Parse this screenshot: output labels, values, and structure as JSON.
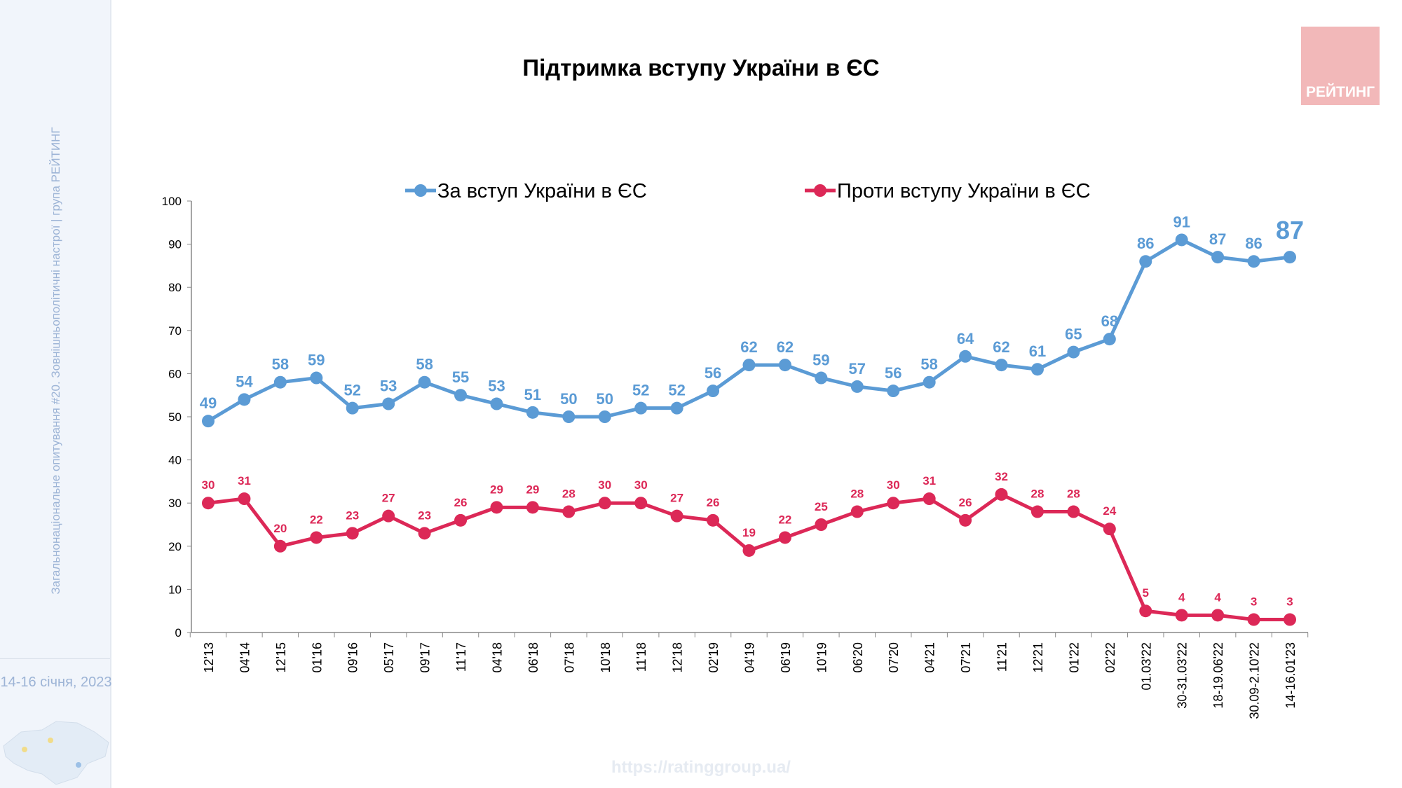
{
  "sidebar": {
    "survey_caption": "Загальнонаціональне опитування #20. Зовнішньополітичні настрої | група РЕЙТИНГ",
    "date": "14-16 січня, 2023"
  },
  "logo": {
    "text": "РЕЙТИНГ"
  },
  "footer": {
    "url": "https://ratinggroup.ua/"
  },
  "chart_data": {
    "type": "line",
    "title": "Підтримка вступу України в ЄС",
    "ylim": [
      0,
      100
    ],
    "yticks": [
      0,
      10,
      20,
      30,
      40,
      50,
      60,
      70,
      80,
      90,
      100
    ],
    "grid": false,
    "legend": "top",
    "categories": [
      "12'13",
      "04'14",
      "12'15",
      "01'16",
      "09'16",
      "05'17",
      "09'17",
      "11'17",
      "04'18",
      "06'18",
      "07'18",
      "10'18",
      "11'18",
      "12'18",
      "02'19",
      "04'19",
      "06'19",
      "10'19",
      "06'20",
      "07'20",
      "04'21",
      "07'21",
      "11'21",
      "12'21",
      "01'22",
      "02'22",
      "01.03'22",
      "30-31.03'22",
      "18-19.06'22",
      "30.09-2.10'22",
      "14-16.01'23"
    ],
    "series": [
      {
        "name": "За вступ України в ЄС",
        "color": "#5b9bd5",
        "values": [
          49,
          54,
          58,
          59,
          52,
          53,
          58,
          55,
          53,
          51,
          50,
          50,
          52,
          52,
          56,
          62,
          62,
          59,
          57,
          56,
          58,
          64,
          62,
          61,
          65,
          68,
          86,
          91,
          87,
          86,
          87
        ]
      },
      {
        "name": "Проти вступу України в ЄС",
        "color": "#dc2857",
        "values": [
          30,
          31,
          20,
          22,
          23,
          27,
          23,
          26,
          29,
          29,
          28,
          30,
          30,
          27,
          26,
          19,
          22,
          25,
          28,
          30,
          31,
          26,
          32,
          28,
          28,
          24,
          5,
          4,
          4,
          3,
          3
        ]
      }
    ]
  }
}
